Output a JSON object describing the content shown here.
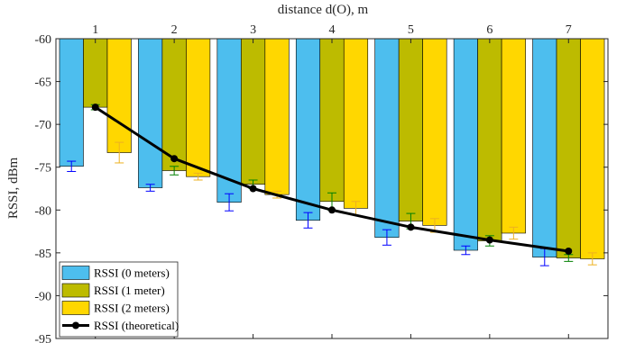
{
  "chart_data": {
    "type": "bar",
    "xlabel": "distance d(O), m",
    "ylabel": "RSSI, dBm",
    "categories": [
      "1",
      "2",
      "3",
      "4",
      "5",
      "6",
      "7"
    ],
    "ylim": [
      -95,
      -60
    ],
    "yticks": [
      -60,
      -65,
      -70,
      -75,
      -80,
      -85,
      -90,
      -95
    ],
    "y_axis_reversed": true,
    "x_axis_location": "top",
    "grid": false,
    "legend_position": "bottom-left",
    "series": [
      {
        "name": "RSSI (0 meters)",
        "kind": "bar",
        "color": "#4DBEEE",
        "errorbar_color": "#0000FF",
        "values": [
          -74.9,
          -77.4,
          -79.1,
          -81.2,
          -83.2,
          -84.7,
          -85.5
        ],
        "errors": [
          0.6,
          0.4,
          1.0,
          0.9,
          0.9,
          0.5,
          1.0
        ]
      },
      {
        "name": "RSSI (1 meter)",
        "kind": "bar",
        "color": "#BDBB00",
        "errorbar_color": "#008000",
        "values": [
          -68.0,
          -75.4,
          -77.0,
          -79.0,
          -81.3,
          -83.6,
          -85.6
        ],
        "errors": [
          0.3,
          0.5,
          0.5,
          1.0,
          0.9,
          0.6,
          0.4
        ]
      },
      {
        "name": "RSSI (2 meters)",
        "kind": "bar",
        "color": "#FFD700",
        "errorbar_color": "#EDB120",
        "values": [
          -73.3,
          -76.1,
          -78.2,
          -79.8,
          -81.8,
          -82.7,
          -85.7
        ],
        "errors": [
          1.2,
          0.4,
          0.4,
          0.8,
          0.8,
          0.7,
          0.7
        ]
      },
      {
        "name": "RSSI (theoretical)",
        "kind": "line",
        "color": "#000000",
        "values": [
          -68.0,
          -74.0,
          -77.5,
          -80.0,
          -82.0,
          -83.5,
          -84.8
        ]
      }
    ]
  }
}
